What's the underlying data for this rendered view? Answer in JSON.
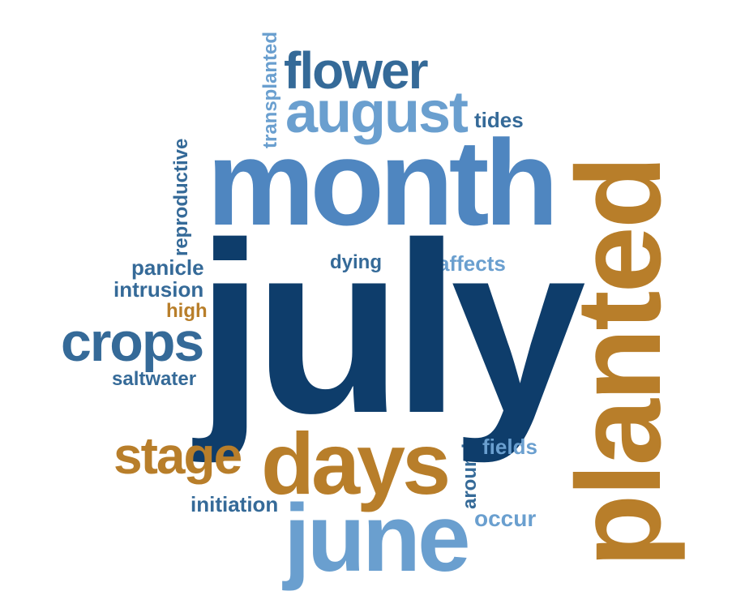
{
  "words": {
    "july": "july",
    "month": "month",
    "planted": "planted",
    "days": "days",
    "june": "june",
    "august": "august",
    "flower": "flower",
    "crops": "crops",
    "stage": "stage",
    "transplanted": "transplanted",
    "reproductive": "reproductive",
    "tides": "tides",
    "dying": "dying",
    "affects": "affects",
    "panicle": "panicle",
    "intrusion": "intrusion",
    "high": "high",
    "saltwater": "saltwater",
    "initiation": "initiation",
    "fields": "fields",
    "around": "around",
    "occur": "occur"
  },
  "colors": {
    "dark_blue": "#0e3d6b",
    "steel_blue": "#356a98",
    "mid_blue": "#4f86c0",
    "light_blue": "#6a9fcf",
    "gold": "#b87e2a"
  }
}
